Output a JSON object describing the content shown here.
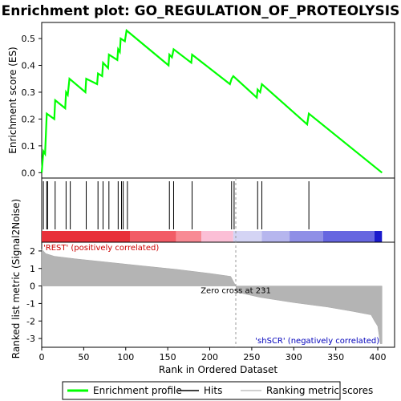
{
  "chart_data": {
    "type": "line",
    "title": "Enrichment plot: GO_REGULATION_OF_PROTEOLYSIS",
    "es_panel": {
      "ylabel": "Enrichment score (ES)",
      "ylim": [
        -0.02,
        0.56
      ],
      "yticks": [
        "0.0",
        "0.1",
        "0.2",
        "0.3",
        "0.4",
        "0.5"
      ],
      "ytick_values": [
        0.0,
        0.1,
        0.2,
        0.3,
        0.4,
        0.5
      ],
      "line_color": "#00ff00",
      "points": [
        [
          0,
          0.0
        ],
        [
          2,
          0.08
        ],
        [
          4,
          0.07
        ],
        [
          6,
          0.22
        ],
        [
          15,
          0.2
        ],
        [
          16,
          0.27
        ],
        [
          28,
          0.24
        ],
        [
          29,
          0.3
        ],
        [
          31,
          0.29
        ],
        [
          33,
          0.35
        ],
        [
          52,
          0.3
        ],
        [
          53,
          0.35
        ],
        [
          66,
          0.33
        ],
        [
          67,
          0.37
        ],
        [
          72,
          0.36
        ],
        [
          73,
          0.41
        ],
        [
          79,
          0.39
        ],
        [
          80,
          0.44
        ],
        [
          90,
          0.42
        ],
        [
          91,
          0.46
        ],
        [
          93,
          0.45
        ],
        [
          94,
          0.5
        ],
        [
          99,
          0.49
        ],
        [
          101,
          0.53
        ],
        [
          151,
          0.4
        ],
        [
          152,
          0.44
        ],
        [
          155,
          0.43
        ],
        [
          157,
          0.46
        ],
        [
          178,
          0.41
        ],
        [
          179,
          0.44
        ],
        [
          224,
          0.33
        ],
        [
          226,
          0.35
        ],
        [
          228,
          0.36
        ],
        [
          256,
          0.28
        ],
        [
          257,
          0.31
        ],
        [
          260,
          0.3
        ],
        [
          262,
          0.33
        ],
        [
          316,
          0.18
        ],
        [
          318,
          0.22
        ],
        [
          405,
          0.0
        ]
      ]
    },
    "hits": [
      2,
      6,
      7,
      16,
      29,
      34,
      53,
      67,
      73,
      80,
      91,
      95,
      97,
      102,
      152,
      157,
      179,
      226,
      229,
      257,
      262,
      318
    ],
    "ranking_panel": {
      "ylabel": "Ranked list metric (Signal2Noise)",
      "ylim": [
        -3.5,
        2.5
      ],
      "yticks": [
        "2",
        "1",
        "0",
        "-1",
        "-2",
        "-3"
      ],
      "ytick_values": [
        2,
        1,
        0,
        -1,
        -2,
        -3
      ],
      "profile": [
        [
          0,
          2.1
        ],
        [
          5,
          1.85
        ],
        [
          15,
          1.7
        ],
        [
          40,
          1.55
        ],
        [
          80,
          1.35
        ],
        [
          120,
          1.15
        ],
        [
          160,
          0.95
        ],
        [
          200,
          0.72
        ],
        [
          225,
          0.55
        ],
        [
          231,
          0.0
        ],
        [
          232,
          -0.35
        ],
        [
          260,
          -0.65
        ],
        [
          300,
          -0.95
        ],
        [
          340,
          -1.2
        ],
        [
          370,
          -1.45
        ],
        [
          392,
          -1.65
        ],
        [
          396,
          -2.0
        ],
        [
          400,
          -2.3
        ],
        [
          403,
          -3.3
        ],
        [
          405,
          -3.3
        ]
      ],
      "positive_label": "'REST' (positively correlated)",
      "negative_label": "'shSCR' (negatively correlated)",
      "zero_cross_label": "Zero cross at 231",
      "zero_cross": 231
    },
    "xlabel": "Rank in Ordered Dataset",
    "xlim": [
      0,
      420
    ],
    "xticks": [
      "0",
      "50",
      "100",
      "150",
      "200",
      "250",
      "300",
      "350",
      "400"
    ],
    "xtick_values": [
      0,
      50,
      100,
      150,
      200,
      250,
      300,
      350,
      400
    ],
    "color_bar": [
      {
        "start": 0,
        "end": 105,
        "color": "#e8303a"
      },
      {
        "start": 105,
        "end": 160,
        "color": "#f25b66"
      },
      {
        "start": 160,
        "end": 190,
        "color": "#f88a94"
      },
      {
        "start": 190,
        "end": 228,
        "color": "#fbbfd6"
      },
      {
        "start": 228,
        "end": 262,
        "color": "#d4d4f4"
      },
      {
        "start": 262,
        "end": 295,
        "color": "#b6b6ee"
      },
      {
        "start": 295,
        "end": 335,
        "color": "#8f8fe6"
      },
      {
        "start": 335,
        "end": 396,
        "color": "#6666e0"
      },
      {
        "start": 396,
        "end": 405,
        "color": "#1a1acc"
      }
    ],
    "legend": [
      {
        "label": "Enrichment profile",
        "kind": "line",
        "color": "#00ff00"
      },
      {
        "label": "Hits",
        "kind": "line",
        "color": "#000000"
      },
      {
        "label": "Ranking metric scores",
        "kind": "line",
        "color": "#c0c0c0"
      }
    ]
  }
}
